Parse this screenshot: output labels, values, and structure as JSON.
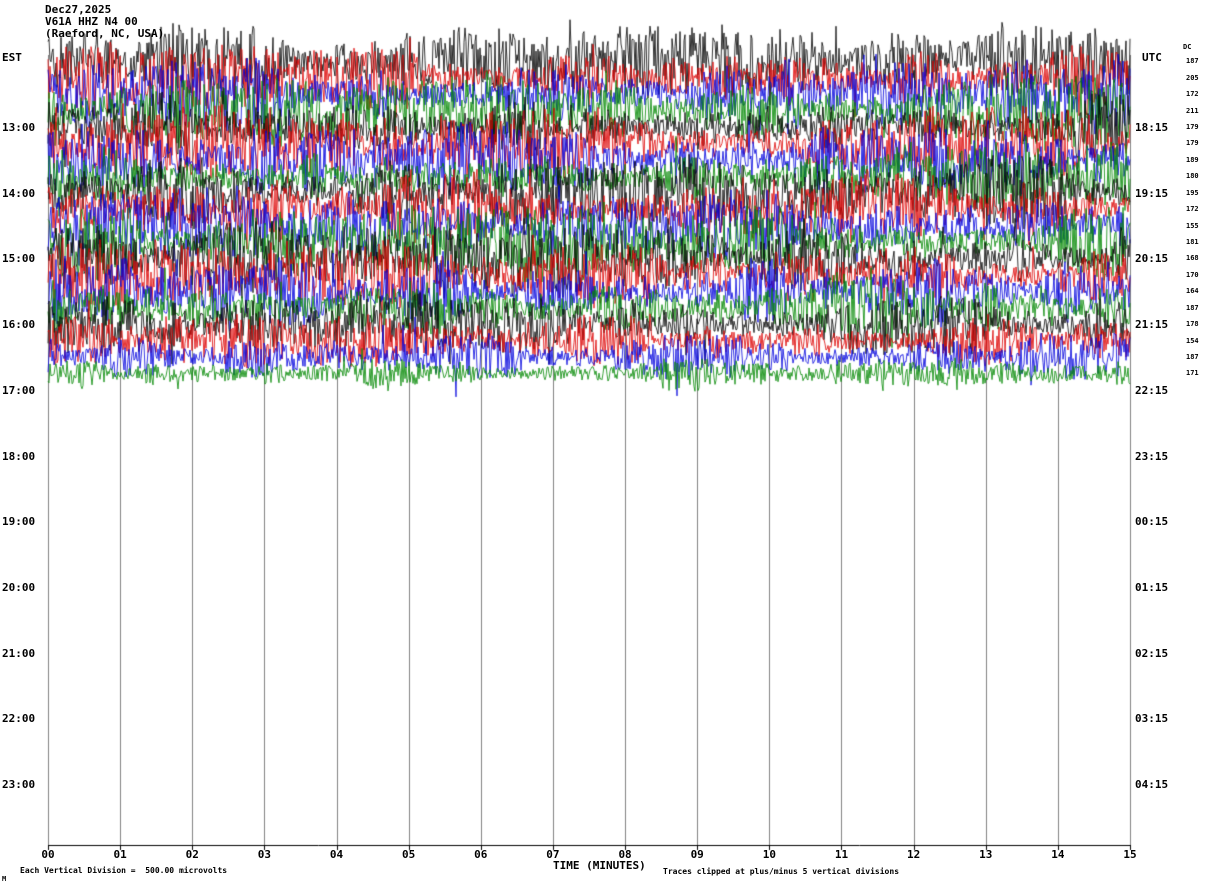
{
  "header": {
    "date": "Dec27,2025",
    "station": "V61A HHZ N4 00",
    "location": "(Raeford, NC, USA)"
  },
  "axes": {
    "left_label": "EST",
    "right_label": "UTC",
    "dc_label": "DC",
    "x_title": "TIME (MINUTES)",
    "x_ticks": [
      "00",
      "01",
      "02",
      "03",
      "04",
      "05",
      "06",
      "07",
      "08",
      "09",
      "10",
      "11",
      "12",
      "13",
      "14",
      "15"
    ],
    "left_times": [
      "13:00",
      "14:00",
      "15:00",
      "16:00",
      "17:00",
      "18:00",
      "19:00",
      "20:00",
      "21:00",
      "22:00",
      "23:00"
    ],
    "right_times": [
      "18:15",
      "19:15",
      "20:15",
      "21:15",
      "22:15",
      "23:15",
      "00:15",
      "01:15",
      "02:15",
      "03:15",
      "04:15"
    ]
  },
  "footer": {
    "division_note": "Each Vertical Division =  500.00 microvolts",
    "clip_note": "Traces clipped at plus/minus 5 vertical divisions",
    "mark": "M"
  },
  "chart_data": {
    "type": "line",
    "subtype": "helicorder-seismogram",
    "title": "V61A HHZ N4 00 — Dec27,2025",
    "x_axis": {
      "title": "TIME (MINUTES)",
      "min": 0,
      "max": 15,
      "tick_interval_minutes": 1,
      "grid": true
    },
    "row_duration_minutes": 15,
    "vertical_division_microvolts": 500.0,
    "clip_divisions": 5,
    "grid_color": "#808080",
    "trace_color_cycle": [
      "#000000",
      "#dd0000",
      "#0000dd",
      "#008800"
    ],
    "signal": "continuous high-amplitude noise, clipped at plus/minus 5 vertical divisions; individual waveform samples not resolvable at this scale",
    "data_ends": "traces plotted from 12:00 EST (17:00 UTC) through 17:00 EST (22:00 UTC); rows below are blank",
    "rows": [
      {
        "est_start": "12:00",
        "utc_start": "17:00",
        "color": "#000000",
        "dc": 187
      },
      {
        "est_start": "12:15",
        "utc_start": "17:15",
        "color": "#dd0000",
        "dc": 205
      },
      {
        "est_start": "12:30",
        "utc_start": "17:30",
        "color": "#0000dd",
        "dc": 172
      },
      {
        "est_start": "12:45",
        "utc_start": "17:45",
        "color": "#008800",
        "dc": 211
      },
      {
        "est_start": "13:00",
        "utc_start": "18:00",
        "color": "#000000",
        "dc": 179
      },
      {
        "est_start": "13:15",
        "utc_start": "18:15",
        "color": "#dd0000",
        "dc": 179
      },
      {
        "est_start": "13:30",
        "utc_start": "18:30",
        "color": "#0000dd",
        "dc": 189
      },
      {
        "est_start": "13:45",
        "utc_start": "18:45",
        "color": "#008800",
        "dc": 180
      },
      {
        "est_start": "14:00",
        "utc_start": "19:00",
        "color": "#000000",
        "dc": 195
      },
      {
        "est_start": "14:15",
        "utc_start": "19:15",
        "color": "#dd0000",
        "dc": 172
      },
      {
        "est_start": "14:30",
        "utc_start": "19:30",
        "color": "#0000dd",
        "dc": 155
      },
      {
        "est_start": "14:45",
        "utc_start": "19:45",
        "color": "#008800",
        "dc": 181
      },
      {
        "est_start": "15:00",
        "utc_start": "20:00",
        "color": "#000000",
        "dc": 168
      },
      {
        "est_start": "15:15",
        "utc_start": "20:15",
        "color": "#dd0000",
        "dc": 170
      },
      {
        "est_start": "15:30",
        "utc_start": "20:30",
        "color": "#0000dd",
        "dc": 164
      },
      {
        "est_start": "15:45",
        "utc_start": "20:45",
        "color": "#008800",
        "dc": 187
      },
      {
        "est_start": "16:00",
        "utc_start": "21:00",
        "color": "#000000",
        "dc": 178
      },
      {
        "est_start": "16:15",
        "utc_start": "21:15",
        "color": "#dd0000",
        "dc": 154
      },
      {
        "est_start": "16:30",
        "utc_start": "21:30",
        "color": "#0000dd",
        "dc": 187
      },
      {
        "est_start": "16:45",
        "utc_start": "21:45",
        "color": "#008800",
        "dc": 171
      }
    ]
  }
}
